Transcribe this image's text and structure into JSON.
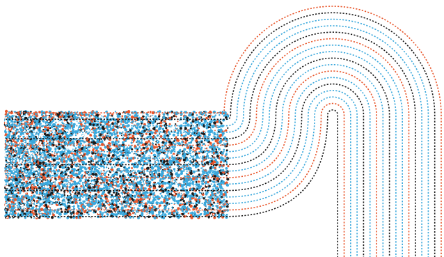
{
  "artwork": {
    "palette": {
      "background": "#ffffff",
      "orange": "#e8572c",
      "blue": "#3aa8dc",
      "black": "#1a1a1a"
    },
    "stripe_color_sequence": [
      "orange",
      "black",
      "blue",
      "blue",
      "black",
      "orange",
      "blue",
      "blue",
      "black",
      "blue",
      "orange",
      "blue",
      "black",
      "blue",
      "blue",
      "orange",
      "black"
    ],
    "stripe_count": 17,
    "style": "dashed-lines",
    "transition": "scattered-dots-to-organized-lines"
  }
}
